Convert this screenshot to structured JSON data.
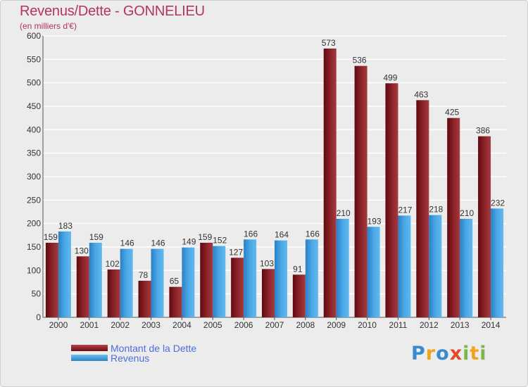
{
  "chart_data": {
    "type": "bar",
    "title": "Revenus/Dette - GONNELIEU",
    "subtitle": "(en milliers d'€)",
    "categories": [
      "2000",
      "2001",
      "2002",
      "2003",
      "2004",
      "2005",
      "2006",
      "2007",
      "2008",
      "2009",
      "2010",
      "2011",
      "2012",
      "2013",
      "2014"
    ],
    "series": [
      {
        "name": "Montant de la Dette",
        "color": "#8b1a22",
        "values": [
          159,
          130,
          102,
          78,
          65,
          159,
          127,
          103,
          91,
          573,
          536,
          499,
          463,
          425,
          386
        ]
      },
      {
        "name": "Revenus",
        "color": "#3a9ad9",
        "values": [
          183,
          159,
          146,
          146,
          149,
          152,
          166,
          164,
          166,
          210,
          193,
          217,
          218,
          210,
          232
        ]
      }
    ],
    "ylim": [
      0,
      600
    ],
    "yticks": [
      0,
      50,
      100,
      150,
      200,
      250,
      300,
      350,
      400,
      450,
      500,
      550,
      600
    ],
    "grid": true,
    "legend_position": "bottom-left"
  },
  "logo": {
    "letters": [
      "P",
      "r",
      "o",
      "x",
      "i",
      "t",
      "i"
    ],
    "colors": [
      "#3a8ad0",
      "#f2a31c",
      "#3a8ad0",
      "#e24a2a",
      "#7ab648",
      "#f2a31c",
      "#7ab648"
    ]
  }
}
